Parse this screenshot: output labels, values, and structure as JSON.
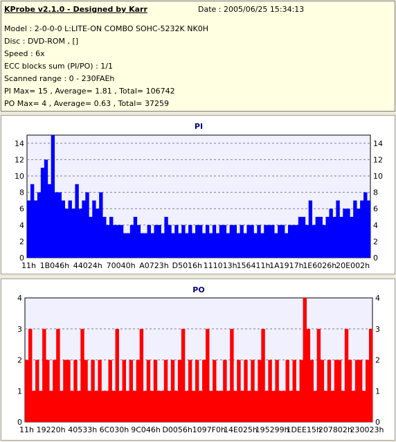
{
  "header": {
    "title": "KProbe v2.1.0 - Designed by Karr",
    "date": "Date : 2005/06/25 15:34:13",
    "lines": [
      "Model : 2-0-0-0 L:LITE-ON COMBO SOHC-5232K NK0H",
      "Disc : DVD-ROM ,  []",
      "Speed : 6x",
      "ECC blocks sum (PI/PO) : 1/1",
      "Scanned range : 0 - 230FAEh",
      "PI Max= 15 , Average= 1.81 , Total= 106742",
      "PO Max= 4 , Average= 0.63 , Total= 37259"
    ]
  },
  "colors": {
    "pi": "#0000ff",
    "po": "#ff0000",
    "plot_bg": "#f0f0ff",
    "grid": "#808080"
  },
  "chart_data": [
    {
      "type": "bar",
      "title": "PI",
      "ylim": [
        0,
        15
      ],
      "yticks": [
        0,
        2,
        4,
        6,
        8,
        10,
        12,
        14
      ],
      "xticks": [
        "11h",
        "1B046h",
        "44024h",
        "70040h",
        "A0723h",
        "D5016h",
        "111013h",
        "156411h",
        "1A1917h",
        "1E6026h",
        "20E002h"
      ],
      "grid": true,
      "series": [
        {
          "values": [
            7,
            9,
            7,
            8,
            11,
            12,
            9,
            15,
            8,
            8,
            7,
            6,
            7,
            6,
            9,
            6,
            7,
            8,
            5,
            7,
            6,
            8,
            5,
            4,
            5,
            4,
            4,
            4,
            3,
            3,
            4,
            5,
            4,
            3,
            3,
            4,
            3,
            4,
            4,
            3,
            5,
            4,
            3,
            4,
            3,
            4,
            3,
            4,
            3,
            4,
            4,
            3,
            4,
            3,
            4,
            3,
            4,
            4,
            3,
            4,
            4,
            3,
            4,
            3,
            4,
            4,
            3,
            4,
            3,
            4,
            4,
            4,
            3,
            4,
            4,
            3,
            4,
            4,
            4,
            5,
            5,
            4,
            7,
            4,
            5,
            5,
            4,
            5,
            6,
            5,
            7,
            5,
            6,
            6,
            5,
            7,
            6,
            7,
            8,
            7
          ]
        }
      ]
    },
    {
      "type": "bar",
      "title": "PO",
      "ylim": [
        0,
        4
      ],
      "yticks": [
        0,
        1,
        2,
        3,
        4
      ],
      "xticks": [
        "11h",
        "19220h",
        "40533h",
        "6C030h",
        "9C046h",
        "D0056h",
        "1097F0h",
        "14E025h",
        "195299h",
        "1DEE15h",
        "207802h",
        "230023h"
      ],
      "grid": true,
      "series": [
        {
          "values": [
            2,
            3,
            1,
            2,
            1,
            3,
            2,
            1,
            2,
            3,
            1,
            2,
            2,
            1,
            2,
            1,
            3,
            2,
            1,
            2,
            1,
            2,
            1,
            1,
            2,
            1,
            3,
            1,
            2,
            1,
            2,
            1,
            2,
            3,
            1,
            2,
            1,
            2,
            1,
            1,
            2,
            1,
            2,
            1,
            2,
            3,
            1,
            2,
            1,
            2,
            1,
            2,
            3,
            1,
            2,
            1,
            1,
            2,
            1,
            3,
            1,
            2,
            1,
            2,
            1,
            2,
            1,
            2,
            3,
            1,
            2,
            1,
            2,
            1,
            1,
            2,
            1,
            2,
            1,
            2,
            4,
            3,
            2,
            1,
            3,
            2,
            1,
            2,
            1,
            2,
            2,
            1,
            3,
            2,
            1,
            2,
            2,
            1,
            2,
            3
          ]
        }
      ]
    }
  ]
}
